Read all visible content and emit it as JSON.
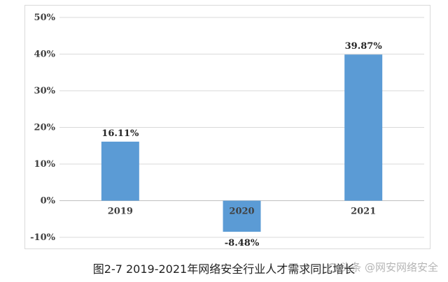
{
  "caption": "图2-7 2019-2021年网络安全行业人才需求同比增长",
  "watermark": "头条 @网安网络安全",
  "colors": {
    "bar": "#5b9bd5",
    "grid": "#d9d9d9",
    "axis": "#bfbfbf"
  },
  "chart_data": {
    "type": "bar",
    "categories": [
      "2019",
      "2020",
      "2021"
    ],
    "values": [
      16.11,
      -8.48,
      39.87
    ],
    "data_labels": [
      "16.11%",
      "-8.48%",
      "39.87%"
    ],
    "ylim": [
      -10,
      50
    ],
    "yticks": [
      50,
      40,
      30,
      20,
      10,
      0,
      -10
    ],
    "ytick_labels": [
      "50%",
      "40%",
      "30%",
      "20%",
      "10%",
      "0%",
      "-10%"
    ],
    "grid": true,
    "legend": "none",
    "title": "",
    "xlabel": "",
    "ylabel": ""
  }
}
